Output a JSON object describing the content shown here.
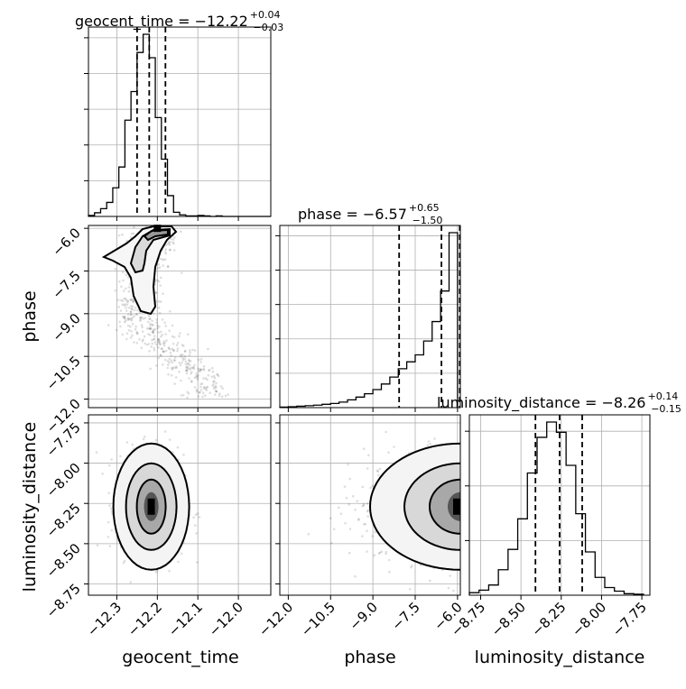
{
  "chart_data": {
    "type": "corner",
    "grid": true,
    "parameters": [
      "geocent_time",
      "phase",
      "luminosity_distance"
    ],
    "ranges": {
      "geocent_time": [
        -12.37,
        -11.92
      ],
      "phase": [
        -12.3,
        -5.9
      ],
      "luminosity_distance": [
        -8.82,
        -7.7
      ]
    },
    "ticks": {
      "geocent_time": [
        "-12.3",
        "-12.2",
        "-12.1",
        "-12.0"
      ],
      "phase": [
        "-12.0",
        "-10.5",
        "-9.0",
        "-7.5",
        "-6.0"
      ],
      "luminosity_distance": [
        "-8.75",
        "-8.50",
        "-8.25",
        "-8.00",
        "-7.75"
      ]
    },
    "titles": {
      "geocent_time": {
        "label": "geocent_time = ",
        "median": "−12.22",
        "plus": "+0.04",
        "minus": "−0.03"
      },
      "phase": {
        "label": "phase = ",
        "median": "−6.57",
        "plus": "+0.65",
        "minus": "−1.50"
      },
      "luminosity_distance": {
        "label": "luminosity_distance = ",
        "median": "−8.26",
        "plus": "+0.14",
        "minus": "−0.15"
      }
    },
    "quantiles": {
      "geocent_time": [
        -12.25,
        -12.22,
        -12.18
      ],
      "phase": [
        -8.07,
        -6.57,
        -5.92
      ],
      "luminosity_distance": [
        -8.41,
        -8.26,
        -8.12
      ]
    },
    "histograms": {
      "geocent_time": {
        "edges": [
          -12.37,
          -12.355,
          -12.34,
          -12.325,
          -12.31,
          -12.295,
          -12.28,
          -12.265,
          -12.25,
          -12.235,
          -12.22,
          -12.205,
          -12.19,
          -12.175,
          -12.16,
          -12.145,
          -12.13,
          -12.115,
          -12.1,
          -12.085,
          -12.07,
          -12.055,
          -12.04,
          -12.025,
          -12.01,
          -11.995,
          -11.98,
          -11.965,
          -11.95,
          -11.935,
          -11.92
        ],
        "counts": [
          2,
          7,
          15,
          27,
          55,
          95,
          185,
          240,
          315,
          350,
          305,
          190,
          110,
          40,
          8,
          3,
          1,
          1,
          2,
          1,
          0,
          1,
          0,
          0,
          0,
          0,
          0,
          0,
          0,
          0
        ]
      },
      "phase": {
        "edges": [
          -12.3,
          -12.0,
          -11.7,
          -11.4,
          -11.1,
          -10.8,
          -10.5,
          -10.2,
          -9.9,
          -9.6,
          -9.3,
          -9.0,
          -8.7,
          -8.4,
          -8.1,
          -7.8,
          -7.5,
          -7.2,
          -6.9,
          -6.6,
          -6.3,
          -6.0
        ],
        "counts": [
          2,
          3,
          5,
          7,
          9,
          12,
          15,
          20,
          28,
          38,
          50,
          65,
          85,
          110,
          140,
          165,
          190,
          240,
          310,
          420,
          630
        ]
      },
      "luminosity_distance": {
        "edges": [
          -8.82,
          -8.76,
          -8.7,
          -8.64,
          -8.58,
          -8.52,
          -8.46,
          -8.4,
          -8.34,
          -8.28,
          -8.22,
          -8.16,
          -8.1,
          -8.04,
          -7.98,
          -7.92,
          -7.86,
          -7.8,
          -7.74
        ],
        "counts": [
          5,
          10,
          20,
          50,
          90,
          150,
          240,
          310,
          340,
          320,
          255,
          160,
          85,
          35,
          15,
          8,
          3,
          2
        ]
      }
    },
    "density_peaks": {
      "phase_vs_geocent_time": {
        "geocent_time": -12.2,
        "phase": -6.0
      },
      "luminosity_distance_vs_geocent_time": {
        "geocent_time": -12.215,
        "luminosity_distance": -8.27
      },
      "luminosity_distance_vs_phase": {
        "phase": -6.0,
        "luminosity_distance": -8.27
      }
    }
  }
}
